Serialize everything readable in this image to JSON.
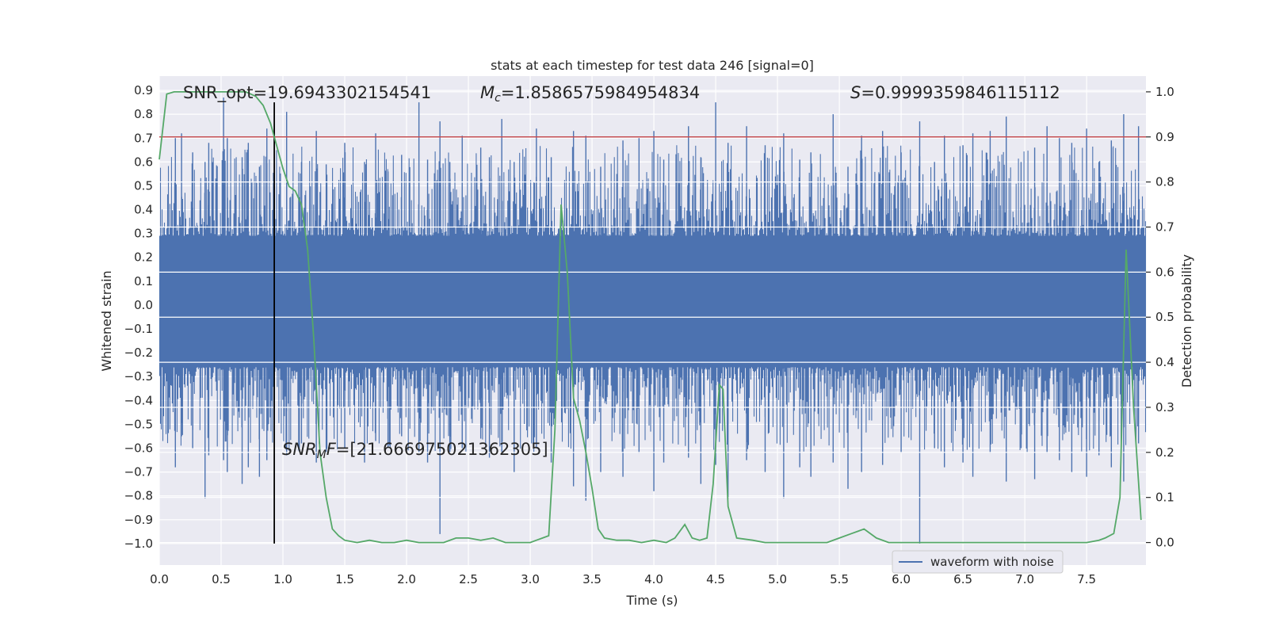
{
  "chart_data": {
    "type": "line",
    "title": "stats at each timestep for test data 246 [signal=0]",
    "xlabel": "Time (s)",
    "ylabel": "Whitened strain",
    "y2label": "Detection probability",
    "xlim": [
      0.0,
      7.98
    ],
    "ylim": [
      -1.09,
      0.96
    ],
    "y2lim": [
      -0.05,
      1.035
    ],
    "xticks": [
      "0.0",
      "0.5",
      "1.0",
      "1.5",
      "2.0",
      "2.5",
      "3.0",
      "3.5",
      "4.0",
      "4.5",
      "5.0",
      "5.5",
      "6.0",
      "6.5",
      "7.0",
      "7.5"
    ],
    "yticks": [
      "0.9",
      "0.8",
      "0.7",
      "0.6",
      "0.5",
      "0.4",
      "0.3",
      "0.2",
      "0.1",
      "0.0",
      "−0.1",
      "−0.2",
      "−0.3",
      "−0.4",
      "−0.5",
      "−0.6",
      "−0.7",
      "−0.8",
      "−0.9",
      "−1.0"
    ],
    "y2ticks": [
      "1.0",
      "0.9",
      "0.8",
      "0.7",
      "0.6",
      "0.5",
      "0.4",
      "0.3",
      "0.2",
      "0.1",
      "0.0"
    ],
    "threshold": 0.9,
    "marker_time": 0.93,
    "marker_range": [
      -1.0,
      0.85
    ],
    "annotations": {
      "snr_opt": "SNR_opt=19.6943302154541",
      "mc_symbol": "M",
      "mc_sub": "c",
      "mc_value": "=1.8586575984954834",
      "s_symbol": "S",
      "s_value": "=0.9999359846115112",
      "snr_mf_symbol": "SNR",
      "snr_mf_sub": "M",
      "snr_mf_symbol2": "F",
      "snr_mf_value": "=[21.666975021362305]"
    },
    "legend": "waveform with noise",
    "series": [
      {
        "name": "waveform with noise",
        "color": "#4c72b0",
        "band_core": [
          -0.26,
          0.29
        ],
        "spike_times": [
          0.13,
          0.18,
          0.27,
          0.37,
          0.4,
          0.52,
          0.55,
          0.67,
          0.72,
          0.81,
          0.87,
          1.03,
          1.15,
          1.27,
          1.35,
          1.5,
          1.66,
          1.75,
          1.85,
          1.96,
          2.1,
          2.17,
          2.27,
          2.35,
          2.45,
          2.6,
          2.67,
          2.77,
          2.87,
          3.05,
          3.17,
          3.35,
          3.45,
          3.57,
          3.75,
          3.88,
          4.0,
          4.08,
          4.28,
          4.38,
          4.5,
          4.6,
          4.75,
          4.9,
          5.05,
          5.18,
          5.27,
          5.45,
          5.57,
          5.68,
          5.85,
          6.0,
          6.15,
          6.27,
          6.35,
          6.5,
          6.58,
          6.72,
          6.85,
          6.97,
          7.08,
          7.18,
          7.28,
          7.38,
          7.5,
          7.6,
          7.7,
          7.8,
          7.92
        ],
        "spike_tops": [
          0.7,
          0.72,
          0.64,
          0.6,
          0.68,
          0.87,
          0.7,
          0.62,
          0.68,
          0.58,
          0.74,
          0.81,
          0.6,
          0.73,
          0.59,
          0.68,
          0.6,
          0.72,
          0.56,
          0.63,
          0.85,
          0.61,
          0.77,
          0.6,
          0.71,
          0.66,
          0.62,
          0.78,
          0.6,
          0.74,
          0.62,
          0.73,
          0.71,
          0.58,
          0.69,
          0.7,
          0.73,
          0.61,
          0.75,
          0.62,
          0.85,
          0.68,
          0.75,
          0.67,
          0.72,
          0.61,
          0.64,
          0.8,
          0.58,
          0.71,
          0.73,
          0.64,
          0.77,
          0.6,
          0.71,
          0.67,
          0.72,
          0.73,
          0.79,
          0.6,
          0.66,
          0.75,
          0.7,
          0.68,
          0.74,
          0.6,
          0.69,
          0.8,
          0.75
        ],
        "spike_bottoms": [
          -0.68,
          -0.55,
          -0.6,
          -0.81,
          -0.63,
          -0.65,
          -0.7,
          -0.75,
          -0.68,
          -0.72,
          -0.65,
          -0.63,
          -0.58,
          -0.66,
          -0.62,
          -0.6,
          -0.66,
          -0.57,
          -0.6,
          -0.55,
          -0.62,
          -0.66,
          -0.96,
          -0.62,
          -0.6,
          -0.56,
          -0.64,
          -0.62,
          -0.7,
          -0.6,
          -0.66,
          -0.76,
          -0.82,
          -0.7,
          -0.72,
          -0.62,
          -0.78,
          -0.66,
          -0.64,
          -0.75,
          -0.67,
          -0.81,
          -0.65,
          -0.7,
          -0.81,
          -0.68,
          -0.72,
          -0.66,
          -0.77,
          -0.7,
          -0.67,
          -0.62,
          -1.0,
          -0.6,
          -0.68,
          -0.66,
          -0.72,
          -0.62,
          -0.74,
          -0.6,
          -0.73,
          -0.62,
          -0.65,
          -0.7,
          -0.72,
          -0.63,
          -0.68,
          -0.74,
          -0.58
        ]
      },
      {
        "name": "detection probability",
        "color": "#55a868",
        "x": [
          0.0,
          0.06,
          0.12,
          0.2,
          0.3,
          0.4,
          0.5,
          0.6,
          0.7,
          0.78,
          0.84,
          0.9,
          0.95,
          1.0,
          1.05,
          1.1,
          1.15,
          1.2,
          1.25,
          1.3,
          1.35,
          1.4,
          1.45,
          1.5,
          1.6,
          1.7,
          1.8,
          1.9,
          2.0,
          2.1,
          2.2,
          2.3,
          2.4,
          2.5,
          2.6,
          2.7,
          2.8,
          2.9,
          3.0,
          3.05,
          3.1,
          3.15,
          3.2,
          3.25,
          3.3,
          3.35,
          3.4,
          3.45,
          3.5,
          3.55,
          3.6,
          3.7,
          3.8,
          3.9,
          4.0,
          4.1,
          4.17,
          4.25,
          4.31,
          4.37,
          4.43,
          4.48,
          4.53,
          4.56,
          4.6,
          4.67,
          4.8,
          4.9,
          5.0,
          5.2,
          5.4,
          5.5,
          5.6,
          5.65,
          5.7,
          5.8,
          5.9,
          6.0,
          6.2,
          6.5,
          6.8,
          7.0,
          7.2,
          7.4,
          7.5,
          7.6,
          7.65,
          7.72,
          7.77,
          7.82,
          7.88,
          7.94
        ],
        "y": [
          0.85,
          0.995,
          1.0,
          1.0,
          1.0,
          1.0,
          1.0,
          1.0,
          1.0,
          0.99,
          0.97,
          0.93,
          0.88,
          0.83,
          0.79,
          0.78,
          0.75,
          0.65,
          0.45,
          0.2,
          0.1,
          0.03,
          0.015,
          0.005,
          0.0,
          0.005,
          0.0,
          0.0,
          0.005,
          0.0,
          0.0,
          0.0,
          0.01,
          0.01,
          0.005,
          0.01,
          0.0,
          0.0,
          0.0,
          0.005,
          0.01,
          0.015,
          0.25,
          0.75,
          0.6,
          0.32,
          0.27,
          0.2,
          0.12,
          0.03,
          0.01,
          0.005,
          0.005,
          0.0,
          0.005,
          0.0,
          0.01,
          0.04,
          0.01,
          0.005,
          0.01,
          0.13,
          0.35,
          0.34,
          0.08,
          0.01,
          0.005,
          0.0,
          0.0,
          0.0,
          0.0,
          0.01,
          0.02,
          0.025,
          0.03,
          0.01,
          0.0,
          0.0,
          0.0,
          0.0,
          0.0,
          0.0,
          0.0,
          0.0,
          0.0,
          0.005,
          0.01,
          0.02,
          0.1,
          0.65,
          0.3,
          0.05
        ]
      }
    ]
  }
}
